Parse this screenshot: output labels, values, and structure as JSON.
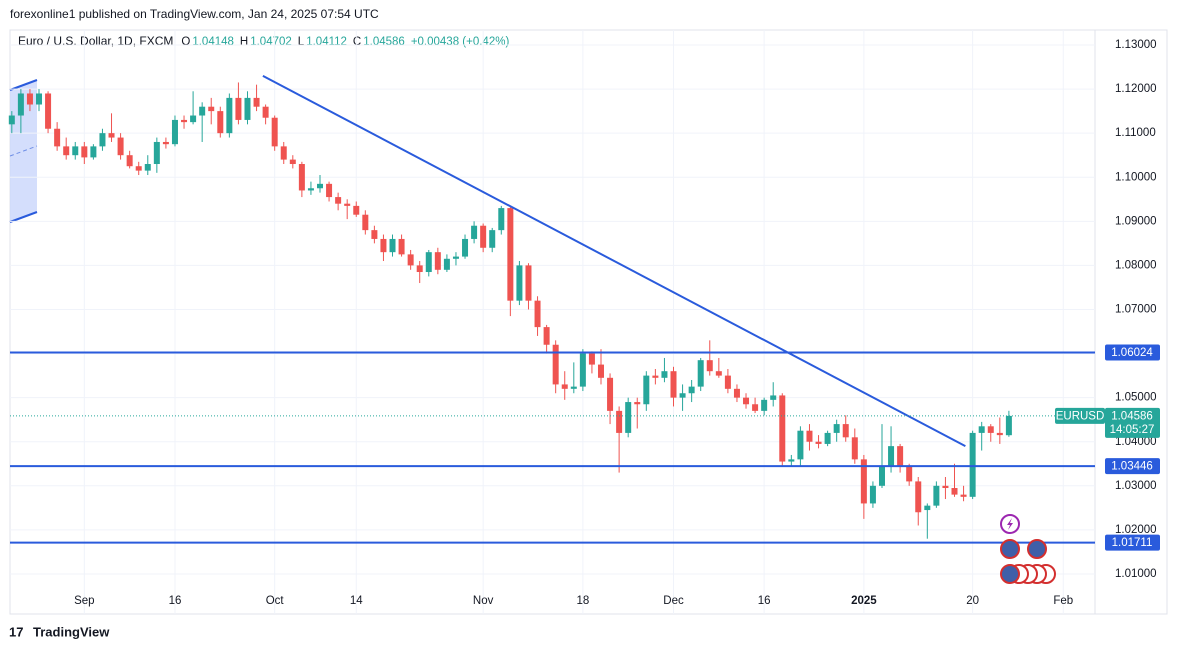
{
  "header": {
    "publisher": "forexonline1 published on TradingView.com, Jan 24, 2025 07:54 UTC"
  },
  "footer": {
    "brand": "TradingView"
  },
  "chart_data": {
    "type": "candlestick",
    "title": "Euro / U.S. Dollar, 1D, FXCM",
    "ohlc": {
      "o_label": "O",
      "open": 1.04148,
      "h_label": "H",
      "high": 1.04702,
      "l_label": "L",
      "low": 1.04112,
      "c_label": "C",
      "close": 1.04586,
      "change": "+0.00438 (+0.42%)"
    },
    "up_color": "#26a69a",
    "down_color": "#ef5350",
    "line_color": "#2a5bdc",
    "candles": [
      [
        1.112,
        1.115,
        1.11,
        1.114
      ],
      [
        1.114,
        1.12,
        1.11,
        1.119
      ],
      [
        1.119,
        1.12,
        1.115,
        1.1165
      ],
      [
        1.1165,
        1.12,
        1.115,
        1.119
      ],
      [
        1.119,
        1.1195,
        1.11,
        1.111
      ],
      [
        1.111,
        1.1125,
        1.106,
        1.107
      ],
      [
        1.107,
        1.109,
        1.104,
        1.105
      ],
      [
        1.105,
        1.108,
        1.104,
        1.107
      ],
      [
        1.107,
        1.108,
        1.103,
        1.1045
      ],
      [
        1.1045,
        1.1075,
        1.104,
        1.107
      ],
      [
        1.107,
        1.111,
        1.106,
        1.11
      ],
      [
        1.11,
        1.1145,
        1.108,
        1.109
      ],
      [
        1.109,
        1.11,
        1.104,
        1.105
      ],
      [
        1.105,
        1.106,
        1.102,
        1.1025
      ],
      [
        1.1025,
        1.1035,
        1.1005,
        1.1015
      ],
      [
        1.1015,
        1.105,
        1.1005,
        1.103
      ],
      [
        1.103,
        1.109,
        1.101,
        1.108
      ],
      [
        1.108,
        1.109,
        1.1065,
        1.1075
      ],
      [
        1.1075,
        1.114,
        1.107,
        1.113
      ],
      [
        1.113,
        1.114,
        1.111,
        1.1125
      ],
      [
        1.1125,
        1.1195,
        1.112,
        1.114
      ],
      [
        1.114,
        1.117,
        1.108,
        1.116
      ],
      [
        1.116,
        1.118,
        1.112,
        1.115
      ],
      [
        1.115,
        1.116,
        1.109,
        1.11
      ],
      [
        1.11,
        1.119,
        1.109,
        1.118
      ],
      [
        1.118,
        1.1215,
        1.112,
        1.113
      ],
      [
        1.113,
        1.1195,
        1.112,
        1.118
      ],
      [
        1.118,
        1.121,
        1.115,
        1.116
      ],
      [
        1.116,
        1.1165,
        1.112,
        1.1135
      ],
      [
        1.1135,
        1.114,
        1.106,
        1.107
      ],
      [
        1.107,
        1.108,
        1.103,
        1.104
      ],
      [
        1.104,
        1.105,
        1.102,
        1.103
      ],
      [
        1.103,
        1.1035,
        1.0955,
        1.097
      ],
      [
        1.097,
        1.099,
        1.096,
        1.0975
      ],
      [
        1.0975,
        1.1005,
        1.0965,
        1.0985
      ],
      [
        1.0985,
        1.099,
        1.0945,
        1.0955
      ],
      [
        1.0955,
        1.0965,
        1.0925,
        1.094
      ],
      [
        1.094,
        1.095,
        1.0905,
        1.0935
      ],
      [
        1.0935,
        1.0945,
        1.091,
        1.0915
      ],
      [
        1.0915,
        1.0925,
        1.087,
        1.088
      ],
      [
        1.088,
        1.089,
        1.085,
        1.086
      ],
      [
        1.086,
        1.087,
        1.081,
        1.083
      ],
      [
        1.083,
        1.087,
        1.082,
        1.086
      ],
      [
        1.086,
        1.087,
        1.082,
        1.0825
      ],
      [
        1.0825,
        1.0835,
        1.079,
        1.08
      ],
      [
        1.08,
        1.081,
        1.076,
        1.0785
      ],
      [
        1.0785,
        1.0835,
        1.0775,
        1.083
      ],
      [
        1.083,
        1.084,
        1.078,
        1.079
      ],
      [
        1.079,
        1.0825,
        1.0785,
        1.0815
      ],
      [
        1.0815,
        1.083,
        1.08,
        1.082
      ],
      [
        1.082,
        1.087,
        1.0815,
        1.086
      ],
      [
        1.086,
        1.09,
        1.085,
        1.089
      ],
      [
        1.089,
        1.0895,
        1.083,
        1.084
      ],
      [
        1.084,
        1.0885,
        1.083,
        1.088
      ],
      [
        1.088,
        1.0935,
        1.087,
        1.093
      ],
      [
        1.093,
        1.0935,
        1.0685,
        1.072
      ],
      [
        1.072,
        1.081,
        1.071,
        1.08
      ],
      [
        1.08,
        1.0805,
        1.07,
        1.072
      ],
      [
        1.072,
        1.073,
        1.064,
        1.066
      ],
      [
        1.066,
        1.0665,
        1.06,
        1.062
      ],
      [
        1.062,
        1.063,
        1.051,
        1.053
      ],
      [
        1.053,
        1.056,
        1.0495,
        1.052
      ],
      [
        1.052,
        1.058,
        1.051,
        1.0525
      ],
      [
        1.0525,
        1.061,
        1.0515,
        1.06
      ],
      [
        1.06,
        1.0605,
        1.0555,
        1.0575
      ],
      [
        1.0575,
        1.061,
        1.053,
        1.0545
      ],
      [
        1.0545,
        1.0555,
        1.044,
        1.047
      ],
      [
        1.047,
        1.048,
        1.033,
        1.042
      ],
      [
        1.042,
        1.05,
        1.041,
        1.049
      ],
      [
        1.049,
        1.05,
        1.043,
        1.0485
      ],
      [
        1.0485,
        1.056,
        1.047,
        1.055
      ],
      [
        1.055,
        1.0565,
        1.053,
        1.0545
      ],
      [
        1.0545,
        1.059,
        1.0535,
        1.056
      ],
      [
        1.056,
        1.057,
        1.048,
        1.05
      ],
      [
        1.05,
        1.053,
        1.047,
        1.051
      ],
      [
        1.051,
        1.054,
        1.049,
        1.0525
      ],
      [
        1.0525,
        1.059,
        1.0515,
        1.0585
      ],
      [
        1.0585,
        1.063,
        1.055,
        1.056
      ],
      [
        1.056,
        1.059,
        1.0545,
        1.055
      ],
      [
        1.055,
        1.0565,
        1.051,
        1.052
      ],
      [
        1.052,
        1.053,
        1.049,
        1.05
      ],
      [
        1.05,
        1.051,
        1.0475,
        1.0485
      ],
      [
        1.0485,
        1.05,
        1.0465,
        1.047
      ],
      [
        1.047,
        1.05,
        1.046,
        1.0495
      ],
      [
        1.0495,
        1.0535,
        1.048,
        1.0505
      ],
      [
        1.0505,
        1.051,
        1.0345,
        1.0355
      ],
      [
        1.0355,
        1.037,
        1.0345,
        1.036
      ],
      [
        1.036,
        1.0435,
        1.0345,
        1.0425
      ],
      [
        1.0425,
        1.044,
        1.038,
        1.04
      ],
      [
        1.04,
        1.0415,
        1.0385,
        1.0395
      ],
      [
        1.0395,
        1.0425,
        1.039,
        1.042
      ],
      [
        1.042,
        1.045,
        1.04,
        1.044
      ],
      [
        1.044,
        1.046,
        1.04,
        1.041
      ],
      [
        1.041,
        1.043,
        1.035,
        1.036
      ],
      [
        1.036,
        1.037,
        1.0225,
        1.026
      ],
      [
        1.026,
        1.031,
        1.025,
        1.03
      ],
      [
        1.03,
        1.044,
        1.0295,
        1.0345
      ],
      [
        1.0345,
        1.0435,
        1.033,
        1.039
      ],
      [
        1.039,
        1.0395,
        1.033,
        1.0345
      ],
      [
        1.0345,
        1.035,
        1.03,
        1.031
      ],
      [
        1.031,
        1.032,
        1.021,
        1.024
      ],
      [
        1.0245,
        1.026,
        1.018,
        1.0255
      ],
      [
        1.0255,
        1.031,
        1.025,
        1.03
      ],
      [
        1.03,
        1.032,
        1.027,
        1.0295
      ],
      [
        1.0295,
        1.035,
        1.0275,
        1.028
      ],
      [
        1.028,
        1.03,
        1.0265,
        1.0275
      ],
      [
        1.0275,
        1.0425,
        1.027,
        1.042
      ],
      [
        1.042,
        1.0445,
        1.038,
        1.0435
      ],
      [
        1.0435,
        1.044,
        1.04,
        1.042
      ],
      [
        1.042,
        1.0455,
        1.0395,
        1.0415
      ],
      [
        1.04148,
        1.04702,
        1.04112,
        1.04586
      ]
    ],
    "xlim": [
      -0.2,
      119.5
    ],
    "xticks": [
      {
        "value": 8,
        "label": "Sep"
      },
      {
        "value": 18,
        "label": "16"
      },
      {
        "value": 29,
        "label": "Oct"
      },
      {
        "value": 38,
        "label": "14"
      },
      {
        "value": 52,
        "label": "Nov"
      },
      {
        "value": 63,
        "label": "18"
      },
      {
        "value": 73,
        "label": "Dec"
      },
      {
        "value": 83,
        "label": "16"
      },
      {
        "value": 94,
        "label": "2025"
      },
      {
        "value": 106,
        "label": "20"
      },
      {
        "value": 116,
        "label": "Feb"
      }
    ],
    "ylim": [
      1.00092,
      1.1334
    ],
    "yticks": [
      {
        "value": 1.13,
        "label": "1.13000"
      },
      {
        "value": 1.12,
        "label": "1.12000"
      },
      {
        "value": 1.11,
        "label": "1.11000"
      },
      {
        "value": 1.1,
        "label": "1.10000"
      },
      {
        "value": 1.09,
        "label": "1.09000"
      },
      {
        "value": 1.08,
        "label": "1.08000"
      },
      {
        "value": 1.07,
        "label": "1.07000"
      },
      {
        "value": 1.06,
        "label": "1.06000"
      },
      {
        "value": 1.05,
        "label": "1.05000"
      },
      {
        "value": 1.04,
        "label": "1.04000"
      },
      {
        "value": 1.03,
        "label": "1.03000"
      },
      {
        "value": 1.02,
        "label": "1.02000"
      },
      {
        "value": 1.01,
        "label": "1.01000"
      }
    ],
    "grid": true,
    "levels": [
      1.06024,
      1.03446,
      1.01711
    ],
    "trendline": [
      [
        27.7,
        1.123
      ],
      [
        105.2,
        1.039
      ]
    ],
    "last_price": {
      "symbol": "EURUSD",
      "value": 1.04586,
      "countdown": "14:05:27"
    }
  }
}
